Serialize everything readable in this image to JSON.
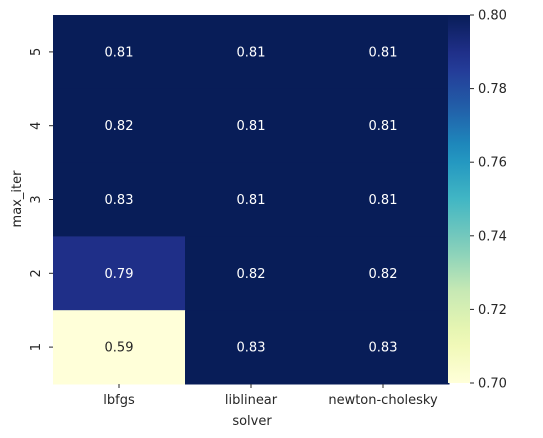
{
  "chart_data": {
    "type": "heatmap",
    "title": "",
    "xlabel": "solver",
    "ylabel": "max_iter",
    "x_categories": [
      "lbfgs",
      "liblinear",
      "newton-cholesky"
    ],
    "y_categories": [
      "5",
      "4",
      "3",
      "2",
      "1"
    ],
    "values": [
      [
        0.81,
        0.81,
        0.81
      ],
      [
        0.82,
        0.81,
        0.81
      ],
      [
        0.83,
        0.81,
        0.81
      ],
      [
        0.79,
        0.82,
        0.82
      ],
      [
        0.59,
        0.83,
        0.83
      ]
    ],
    "annotations": [
      [
        "0.81",
        "0.81",
        "0.81"
      ],
      [
        "0.82",
        "0.81",
        "0.81"
      ],
      [
        "0.83",
        "0.81",
        "0.81"
      ],
      [
        "0.79",
        "0.82",
        "0.82"
      ],
      [
        "0.59",
        "0.83",
        "0.83"
      ]
    ],
    "colormap": "YlGnBu",
    "vmin": 0.7,
    "vmax": 0.8,
    "colorbar_ticks": [
      "0.70",
      "0.72",
      "0.74",
      "0.76",
      "0.78",
      "0.80"
    ],
    "colors": {
      "low": "#ffffd9",
      "high": "#081d58",
      "dark_text": "#262626",
      "light_text": "#ffffff"
    }
  }
}
